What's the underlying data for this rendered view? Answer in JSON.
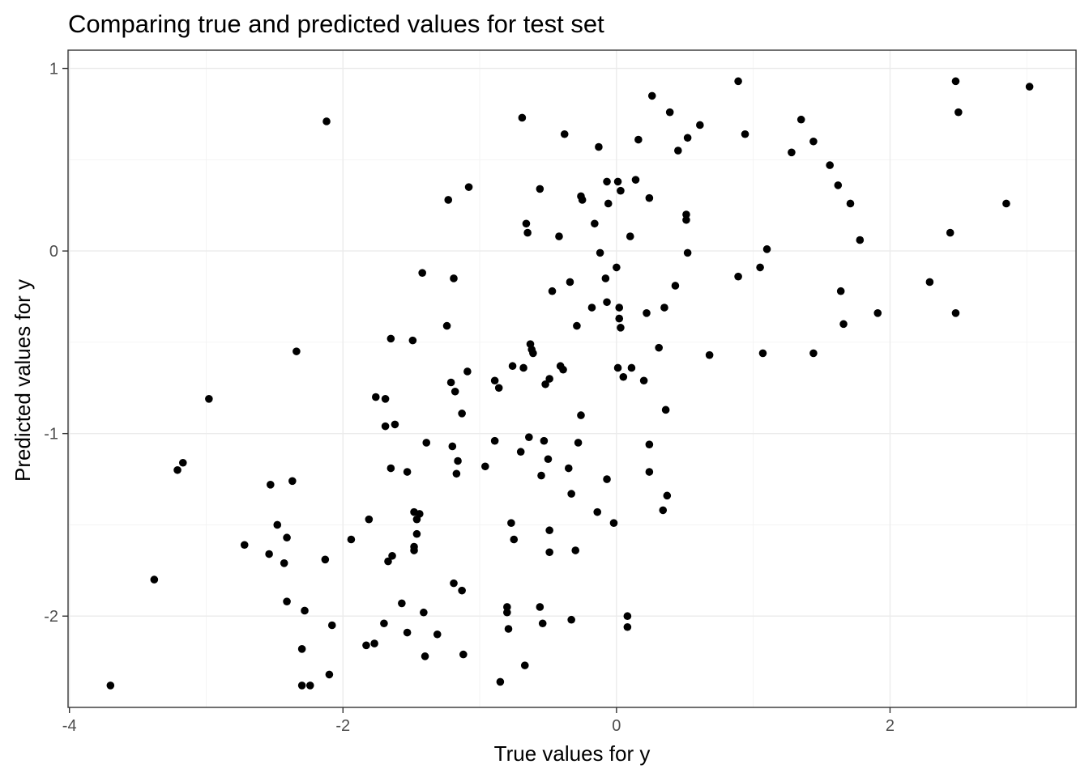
{
  "chart_data": {
    "type": "scatter",
    "title": "Comparing true and predicted values for test set",
    "xlabel": "True values for y",
    "ylabel": "Predicted values for y",
    "xlim": [
      -4.01,
      3.36
    ],
    "ylim": [
      -2.5,
      1.1
    ],
    "x_ticks": [
      -4,
      -2,
      0,
      2
    ],
    "y_ticks": [
      -2,
      -1,
      0,
      1
    ],
    "x_tick_labels": [
      "-4",
      "-2",
      "0",
      "2"
    ],
    "y_tick_labels": [
      "-2",
      "-1",
      "0",
      "1"
    ],
    "grid": true,
    "legend": "none",
    "point_color": "#000000",
    "points": [
      [
        -3.7,
        -2.38
      ],
      [
        -3.38,
        -1.8
      ],
      [
        -3.21,
        -1.2
      ],
      [
        -3.17,
        -1.16
      ],
      [
        -2.98,
        -0.81
      ],
      [
        -2.72,
        -1.61
      ],
      [
        -2.54,
        -1.66
      ],
      [
        -2.53,
        -1.28
      ],
      [
        -2.48,
        -1.5
      ],
      [
        -2.43,
        -1.71
      ],
      [
        -2.41,
        -1.92
      ],
      [
        -2.41,
        -1.57
      ],
      [
        -2.37,
        -1.26
      ],
      [
        -2.34,
        -0.55
      ],
      [
        -2.3,
        -2.18
      ],
      [
        -2.3,
        -2.38
      ],
      [
        -2.28,
        -1.97
      ],
      [
        -2.24,
        -2.38
      ],
      [
        -2.13,
        -1.69
      ],
      [
        -2.12,
        0.71
      ],
      [
        -2.1,
        -2.32
      ],
      [
        -2.08,
        -2.05
      ],
      [
        -1.94,
        -1.58
      ],
      [
        -1.83,
        -2.16
      ],
      [
        -1.81,
        -1.47
      ],
      [
        -1.77,
        -2.15
      ],
      [
        -1.76,
        -0.8
      ],
      [
        -1.7,
        -2.04
      ],
      [
        -1.69,
        -0.81
      ],
      [
        -1.69,
        -0.96
      ],
      [
        -1.67,
        -1.7
      ],
      [
        -1.65,
        -0.48
      ],
      [
        -1.65,
        -1.19
      ],
      [
        -1.64,
        -1.67
      ],
      [
        -1.62,
        -0.95
      ],
      [
        -1.57,
        -1.93
      ],
      [
        -1.53,
        -2.09
      ],
      [
        -1.53,
        -1.21
      ],
      [
        -1.49,
        -0.49
      ],
      [
        -1.48,
        -1.43
      ],
      [
        -1.48,
        -1.62
      ],
      [
        -1.48,
        -1.64
      ],
      [
        -1.46,
        -1.47
      ],
      [
        -1.46,
        -1.55
      ],
      [
        -1.44,
        -1.44
      ],
      [
        -1.42,
        -0.12
      ],
      [
        -1.41,
        -1.98
      ],
      [
        -1.4,
        -2.22
      ],
      [
        -1.39,
        -1.05
      ],
      [
        -1.31,
        -2.1
      ],
      [
        -1.24,
        -0.41
      ],
      [
        -1.23,
        0.28
      ],
      [
        -1.21,
        -0.72
      ],
      [
        -1.2,
        -1.07
      ],
      [
        -1.19,
        -0.15
      ],
      [
        -1.19,
        -1.82
      ],
      [
        -1.18,
        -0.77
      ],
      [
        -1.17,
        -1.22
      ],
      [
        -1.16,
        -1.15
      ],
      [
        -1.13,
        -1.86
      ],
      [
        -1.13,
        -0.89
      ],
      [
        -1.12,
        -2.21
      ],
      [
        -1.09,
        -0.66
      ],
      [
        -1.08,
        0.35
      ],
      [
        -0.96,
        -1.18
      ],
      [
        -0.89,
        -0.71
      ],
      [
        -0.89,
        -1.04
      ],
      [
        -0.86,
        -0.75
      ],
      [
        -0.85,
        -2.36
      ],
      [
        -0.8,
        -1.95
      ],
      [
        -0.8,
        -1.98
      ],
      [
        -0.79,
        -2.07
      ],
      [
        -0.77,
        -1.49
      ],
      [
        -0.76,
        -0.63
      ],
      [
        -0.75,
        -1.58
      ],
      [
        -0.7,
        -1.1
      ],
      [
        -0.69,
        0.73
      ],
      [
        -0.68,
        -0.64
      ],
      [
        -0.67,
        -2.27
      ],
      [
        -0.66,
        0.15
      ],
      [
        -0.65,
        0.1
      ],
      [
        -0.64,
        -1.02
      ],
      [
        -0.63,
        -0.51
      ],
      [
        -0.62,
        -0.54
      ],
      [
        -0.61,
        -0.56
      ],
      [
        -0.56,
        -1.95
      ],
      [
        -0.56,
        0.34
      ],
      [
        -0.55,
        -1.23
      ],
      [
        -0.54,
        -2.04
      ],
      [
        -0.53,
        -1.04
      ],
      [
        -0.52,
        -0.73
      ],
      [
        -0.5,
        -1.14
      ],
      [
        -0.49,
        -0.7
      ],
      [
        -0.49,
        -1.53
      ],
      [
        -0.49,
        -1.65
      ],
      [
        -0.47,
        -0.22
      ],
      [
        -0.42,
        0.08
      ],
      [
        -0.41,
        -0.63
      ],
      [
        -0.39,
        -0.65
      ],
      [
        -0.38,
        0.64
      ],
      [
        -0.35,
        -1.19
      ],
      [
        -0.34,
        -0.17
      ],
      [
        -0.33,
        -1.33
      ],
      [
        -0.33,
        -2.02
      ],
      [
        -0.3,
        -1.64
      ],
      [
        -0.29,
        -0.41
      ],
      [
        -0.28,
        -1.05
      ],
      [
        -0.26,
        0.3
      ],
      [
        -0.26,
        -0.9
      ],
      [
        -0.25,
        0.28
      ],
      [
        -0.18,
        -0.31
      ],
      [
        -0.16,
        0.15
      ],
      [
        -0.14,
        -1.43
      ],
      [
        -0.13,
        0.57
      ],
      [
        -0.12,
        -0.01
      ],
      [
        -0.08,
        -0.15
      ],
      [
        -0.07,
        -0.28
      ],
      [
        -0.07,
        -1.25
      ],
      [
        -0.07,
        0.38
      ],
      [
        -0.06,
        0.26
      ],
      [
        -0.02,
        -1.49
      ],
      [
        0.0,
        -0.09
      ],
      [
        0.01,
        0.38
      ],
      [
        0.01,
        -0.64
      ],
      [
        0.02,
        -0.31
      ],
      [
        0.02,
        -0.37
      ],
      [
        0.03,
        -0.42
      ],
      [
        0.03,
        0.33
      ],
      [
        0.05,
        -0.69
      ],
      [
        0.08,
        -2.0
      ],
      [
        0.08,
        -2.06
      ],
      [
        0.1,
        0.08
      ],
      [
        0.11,
        -0.64
      ],
      [
        0.14,
        0.39
      ],
      [
        0.16,
        0.61
      ],
      [
        0.2,
        -0.71
      ],
      [
        0.22,
        -0.34
      ],
      [
        0.24,
        0.29
      ],
      [
        0.24,
        -1.06
      ],
      [
        0.24,
        -1.21
      ],
      [
        0.26,
        0.85
      ],
      [
        0.31,
        -0.53
      ],
      [
        0.34,
        -1.42
      ],
      [
        0.35,
        -0.31
      ],
      [
        0.36,
        -0.87
      ],
      [
        0.37,
        -1.34
      ],
      [
        0.39,
        0.76
      ],
      [
        0.43,
        -0.19
      ],
      [
        0.45,
        0.55
      ],
      [
        0.51,
        0.2
      ],
      [
        0.51,
        0.17
      ],
      [
        0.52,
        0.62
      ],
      [
        0.52,
        -0.01
      ],
      [
        0.61,
        0.69
      ],
      [
        0.68,
        -0.57
      ],
      [
        0.89,
        0.93
      ],
      [
        0.89,
        -0.14
      ],
      [
        0.94,
        0.64
      ],
      [
        1.05,
        -0.09
      ],
      [
        1.07,
        -0.56
      ],
      [
        1.1,
        0.01
      ],
      [
        1.28,
        0.54
      ],
      [
        1.35,
        0.72
      ],
      [
        1.44,
        -0.56
      ],
      [
        1.44,
        0.6
      ],
      [
        1.56,
        0.47
      ],
      [
        1.62,
        0.36
      ],
      [
        1.64,
        -0.22
      ],
      [
        1.66,
        -0.4
      ],
      [
        1.71,
        0.26
      ],
      [
        1.78,
        0.06
      ],
      [
        1.91,
        -0.34
      ],
      [
        2.29,
        -0.17
      ],
      [
        2.44,
        0.1
      ],
      [
        2.48,
        0.93
      ],
      [
        2.48,
        -0.34
      ],
      [
        2.5,
        0.76
      ],
      [
        2.85,
        0.26
      ],
      [
        3.02,
        0.9
      ]
    ]
  }
}
